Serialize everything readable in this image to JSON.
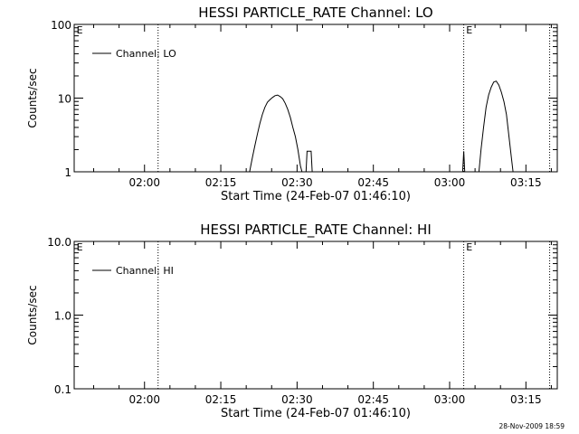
{
  "chart_data": [
    {
      "type": "line",
      "title": "HESSI PARTICLE_RATE Channel: LO",
      "xlabel": "Start Time (24-Feb-07 01:46:10)",
      "ylabel": "Counts/sec",
      "yscale": "log",
      "ylim": [
        1,
        100
      ],
      "y_tick_values": [
        1,
        10,
        100
      ],
      "y_tick_labels": [
        "1",
        "10",
        "100"
      ],
      "xlim_minutes_after_start": [
        0,
        95
      ],
      "x_tick_values_minutes": [
        13.83,
        28.83,
        43.83,
        58.83,
        73.83,
        88.83
      ],
      "x_tick_labels": [
        "02:00",
        "02:15",
        "02:30",
        "02:45",
        "03:00",
        "03:15"
      ],
      "grid": false,
      "legend_position": "top-left",
      "event_lines_minutes": [
        16.5,
        76.6,
        93.5
      ],
      "event_markers": [
        {
          "x_minutes": 0.3,
          "label": "E"
        },
        {
          "x_minutes": 76.9,
          "label": "E"
        }
      ],
      "series": [
        {
          "name": "Channel: LO",
          "segments": [
            [
              [
                34.5,
                1
              ],
              [
                35.0,
                1.5
              ],
              [
                35.5,
                2.2
              ],
              [
                36.0,
                3.2
              ],
              [
                36.5,
                4.5
              ],
              [
                37.0,
                6.0
              ],
              [
                37.5,
                7.5
              ],
              [
                38.0,
                8.8
              ],
              [
                38.5,
                9.5
              ],
              [
                39.0,
                10.2
              ],
              [
                39.5,
                10.8
              ],
              [
                40.0,
                11.0
              ],
              [
                40.5,
                10.5
              ],
              [
                41.0,
                9.8
              ],
              [
                41.5,
                8.5
              ],
              [
                42.0,
                7.0
              ],
              [
                42.5,
                5.5
              ],
              [
                43.0,
                4.0
              ],
              [
                43.5,
                3.0
              ],
              [
                44.0,
                2.0
              ],
              [
                44.5,
                1.2
              ],
              [
                44.8,
                1
              ]
            ],
            [
              [
                45.6,
                1
              ],
              [
                45.8,
                1.9
              ],
              [
                46.6,
                1.9
              ],
              [
                46.8,
                1
              ]
            ],
            [
              [
                76.4,
                1
              ],
              [
                76.6,
                1.9
              ],
              [
                76.8,
                1
              ]
            ],
            [
              [
                79.6,
                1
              ],
              [
                80.0,
                2.0
              ],
              [
                80.5,
                4.0
              ],
              [
                81.0,
                7.5
              ],
              [
                81.5,
                11.0
              ],
              [
                82.0,
                14.0
              ],
              [
                82.5,
                16.5
              ],
              [
                83.0,
                17.0
              ],
              [
                83.5,
                15.0
              ],
              [
                84.0,
                12.0
              ],
              [
                84.5,
                9.0
              ],
              [
                85.0,
                6.0
              ],
              [
                85.5,
                3.0
              ],
              [
                86.0,
                1.5
              ],
              [
                86.3,
                1
              ]
            ]
          ]
        }
      ]
    },
    {
      "type": "line",
      "title": "HESSI PARTICLE_RATE Channel: HI",
      "xlabel": "Start Time (24-Feb-07 01:46:10)",
      "ylabel": "Counts/sec",
      "yscale": "log",
      "ylim": [
        0.1,
        10
      ],
      "y_tick_values": [
        0.1,
        1,
        10
      ],
      "y_tick_labels": [
        "0.1",
        "1.0",
        "10.0"
      ],
      "xlim_minutes_after_start": [
        0,
        95
      ],
      "x_tick_values_minutes": [
        13.83,
        28.83,
        43.83,
        58.83,
        73.83,
        88.83
      ],
      "x_tick_labels": [
        "02:00",
        "02:15",
        "02:30",
        "02:45",
        "03:00",
        "03:15"
      ],
      "grid": false,
      "legend_position": "top-left",
      "event_lines_minutes": [
        16.5,
        76.6,
        93.5
      ],
      "event_markers": [
        {
          "x_minutes": 0.3,
          "label": "E"
        },
        {
          "x_minutes": 76.9,
          "label": "E"
        }
      ],
      "series": [
        {
          "name": "Channel: HI",
          "segments": []
        }
      ]
    }
  ],
  "footer": {
    "timestamp": "28-Nov-2009 18:59"
  }
}
